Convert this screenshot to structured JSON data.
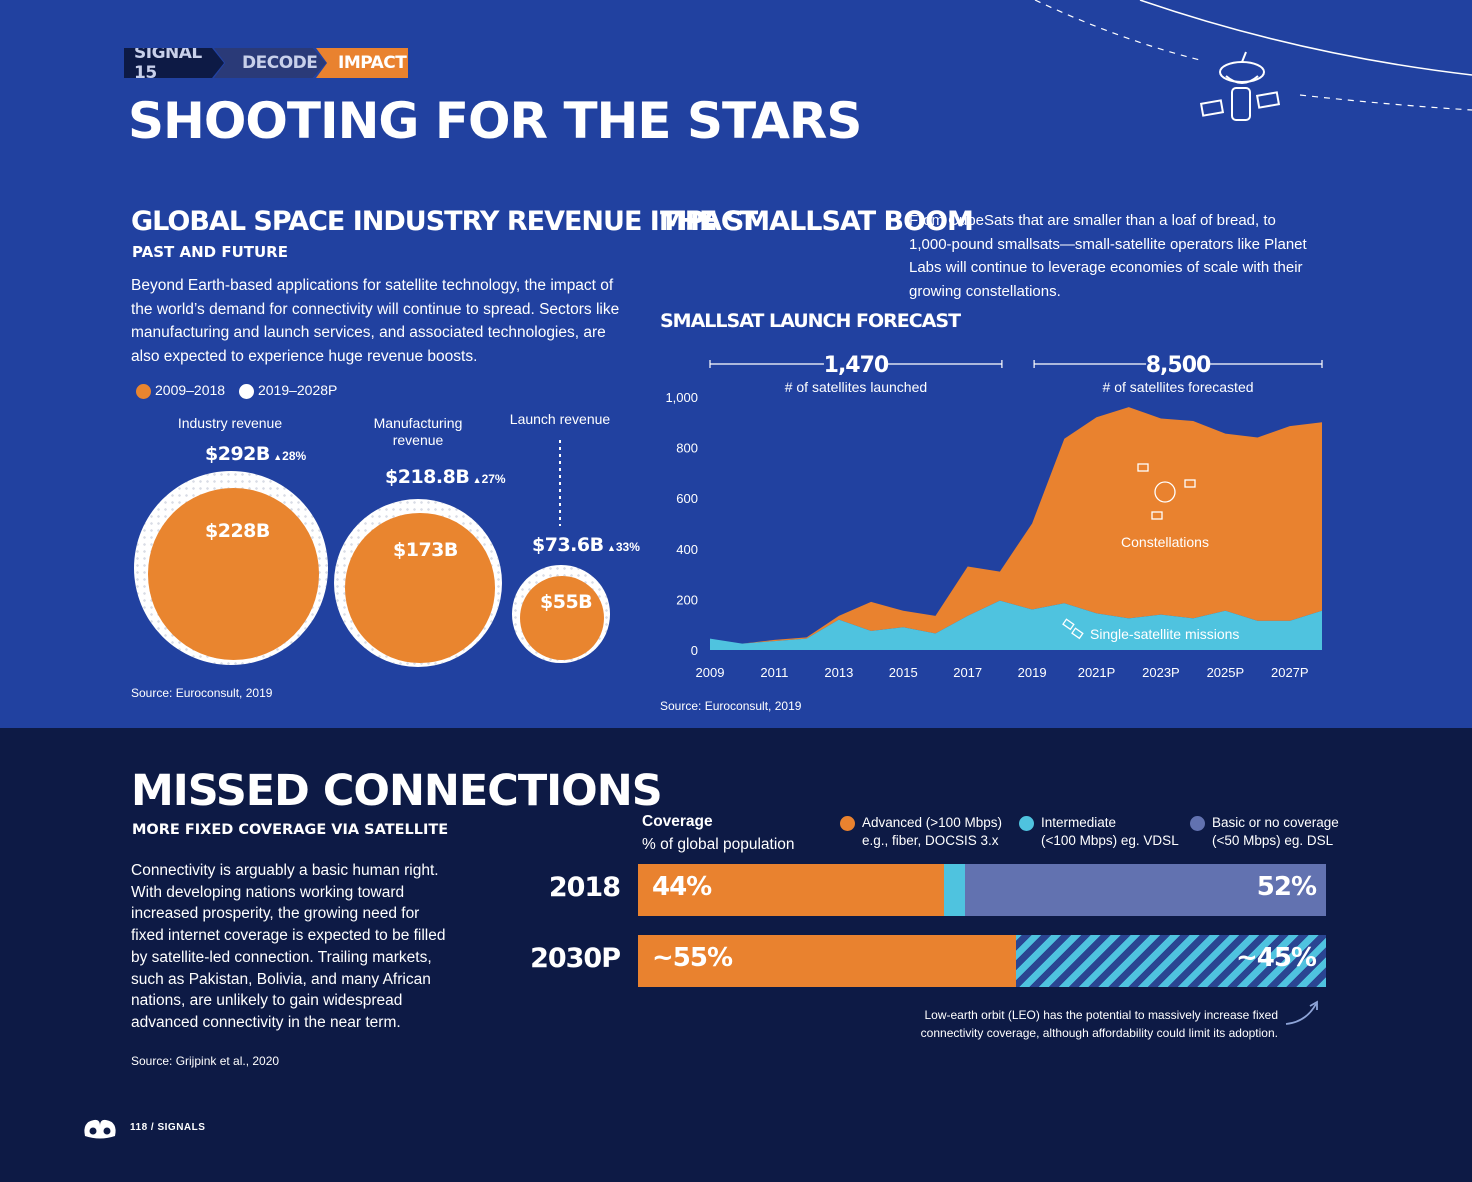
{
  "breadcrumb": [
    "SIGNAL 15",
    "DECODE",
    "IMPACT"
  ],
  "page_title": "SHOOTING FOR THE STARS",
  "revenue_section": {
    "title": "GLOBAL SPACE INDUSTRY REVENUE IMPACT",
    "subtitle": "PAST AND FUTURE",
    "body_lines": [
      "Beyond Earth-based applications for satellite technology, the impact of",
      "the world’s demand for connectivity will continue to spread. Sectors like",
      "manufacturing and launch services, and associated technologies, are",
      "also expected to experience huge revenue boosts."
    ],
    "source": "Source: Euroconsult, 2019"
  },
  "smallsat_section": {
    "title": "THE SMALLSAT BOOM",
    "body_lines": [
      "From CubeSats that are smaller than a loaf of bread, to",
      "1,000-pound smallsats—small-satellite operators like Planet",
      "Labs will continue to leverage economies of scale with their",
      "growing constellations."
    ],
    "chart_title": "SMALLSAT LAUNCH FORECAST",
    "source": "Source: Euroconsult, 2019"
  },
  "missed_section": {
    "title": "MISSED CONNECTIONS",
    "subtitle": "MORE FIXED COVERAGE VIA SATELLITE",
    "body_lines": [
      "Connectivity is arguably a basic human right.",
      "With developing nations working toward",
      "increased prosperity, the growing need for",
      "fixed internet coverage is expected to be filled",
      "by satellite-led connection. Trailing markets,",
      "such as Pakistan, Bolivia, and many African",
      "nations, are unlikely to gain widespread",
      "advanced connectivity in the near term."
    ],
    "source": "Source: Grijpink et al., 2020",
    "coverage_label": "Coverage",
    "coverage_sub": "% of global population",
    "note_lines": [
      "Low-earth orbit (LEO) has the potential to massively increase fixed",
      "connectivity coverage, although affordability could limit its adoption."
    ]
  },
  "footer": {
    "page": "118",
    "sep": "/",
    "name": "SIGNALS"
  },
  "colors": {
    "orange": "#e9822f",
    "cyan": "#4fc3df",
    "slate": "#6272b0",
    "top_bg": "#2141a0",
    "bottom_bg": "#0d1a45"
  },
  "chart_data": [
    {
      "type": "bubble",
      "legend": [
        {
          "label": "2009–2018",
          "color": "#e9852f"
        },
        {
          "label": "2019–2028P",
          "color": "#ffffff"
        }
      ],
      "categories": [
        "Industry revenue",
        "Manufacturing revenue",
        "Launch revenue"
      ],
      "series": [
        {
          "name": "2009–2018",
          "labels": [
            "$228B",
            "$173B",
            "$55B"
          ],
          "values": [
            228,
            173,
            55
          ]
        },
        {
          "name": "2019–2028P",
          "labels": [
            "$292B",
            "$218.8B",
            "$73.6B"
          ],
          "values": [
            292,
            218.8,
            73.6
          ]
        }
      ],
      "growth": [
        "28%",
        "27%",
        "33%"
      ]
    },
    {
      "type": "area",
      "title": "SMALLSAT LAUNCH FORECAST",
      "x": [
        2009,
        2010,
        2011,
        2012,
        2013,
        2014,
        2015,
        2016,
        2017,
        2018,
        2019,
        2020,
        2021,
        2022,
        2023,
        2024,
        2025,
        2026,
        2027,
        2028
      ],
      "x_tick_labels": [
        "2009",
        "2011",
        "2013",
        "2015",
        "2017",
        "2019",
        "2021P",
        "2023P",
        "2025P",
        "2027P"
      ],
      "x_tick_values": [
        2009,
        2011,
        2013,
        2015,
        2017,
        2019,
        2021,
        2023,
        2025,
        2027
      ],
      "ylim": [
        0,
        1000
      ],
      "y_ticks": [
        0,
        200,
        400,
        600,
        800,
        1000
      ],
      "y_tick_labels": [
        "0",
        "200",
        "400",
        "600",
        "800",
        "1,000"
      ],
      "series": [
        {
          "name": "Single-satellite missions",
          "color": "#4fc3df",
          "values": [
            45,
            25,
            35,
            45,
            120,
            75,
            90,
            65,
            135,
            195,
            160,
            185,
            145,
            125,
            140,
            125,
            155,
            115,
            115,
            155
          ]
        },
        {
          "name": "Constellations",
          "color": "#e9822f",
          "values": [
            0,
            0,
            5,
            5,
            15,
            115,
            65,
            70,
            195,
            115,
            340,
            650,
            775,
            835,
            775,
            780,
            700,
            725,
            770,
            745
          ]
        }
      ],
      "annotations": [
        {
          "value": "1,470",
          "label": "# of satellites launched",
          "range": [
            2009,
            2018
          ]
        },
        {
          "value": "8,500",
          "label": "# of satellites forecasted",
          "range": [
            2019,
            2028
          ]
        }
      ]
    },
    {
      "type": "bar",
      "orientation": "horizontal-stacked",
      "categories": [
        "2018",
        "2030P"
      ],
      "legend": [
        {
          "name": "Advanced (>100 Mbps)",
          "sub": "e.g., fiber, DOCSIS 3.x",
          "color": "#e9822f"
        },
        {
          "name": "Intermediate",
          "sub": "(<100 Mbps) eg. VDSL",
          "color": "#4fc3df"
        },
        {
          "name": "Basic or no coverage",
          "sub": "(<50 Mbps) eg. DSL",
          "color": "#6272b0"
        }
      ],
      "rows": [
        {
          "year": "2018",
          "segments": [
            {
              "value": 44,
              "label": "44%",
              "color": "#e9822f"
            },
            {
              "value": 3,
              "label": "3%",
              "color": "#4fc3df"
            },
            {
              "value": 52,
              "label": "52%",
              "color": "#6272b0"
            }
          ]
        },
        {
          "year": "2030P",
          "segments": [
            {
              "value": 55,
              "label": "~55%",
              "color": "#e9822f"
            },
            {
              "value": 45,
              "label": "~45%",
              "color": "hatch"
            }
          ]
        }
      ]
    }
  ]
}
